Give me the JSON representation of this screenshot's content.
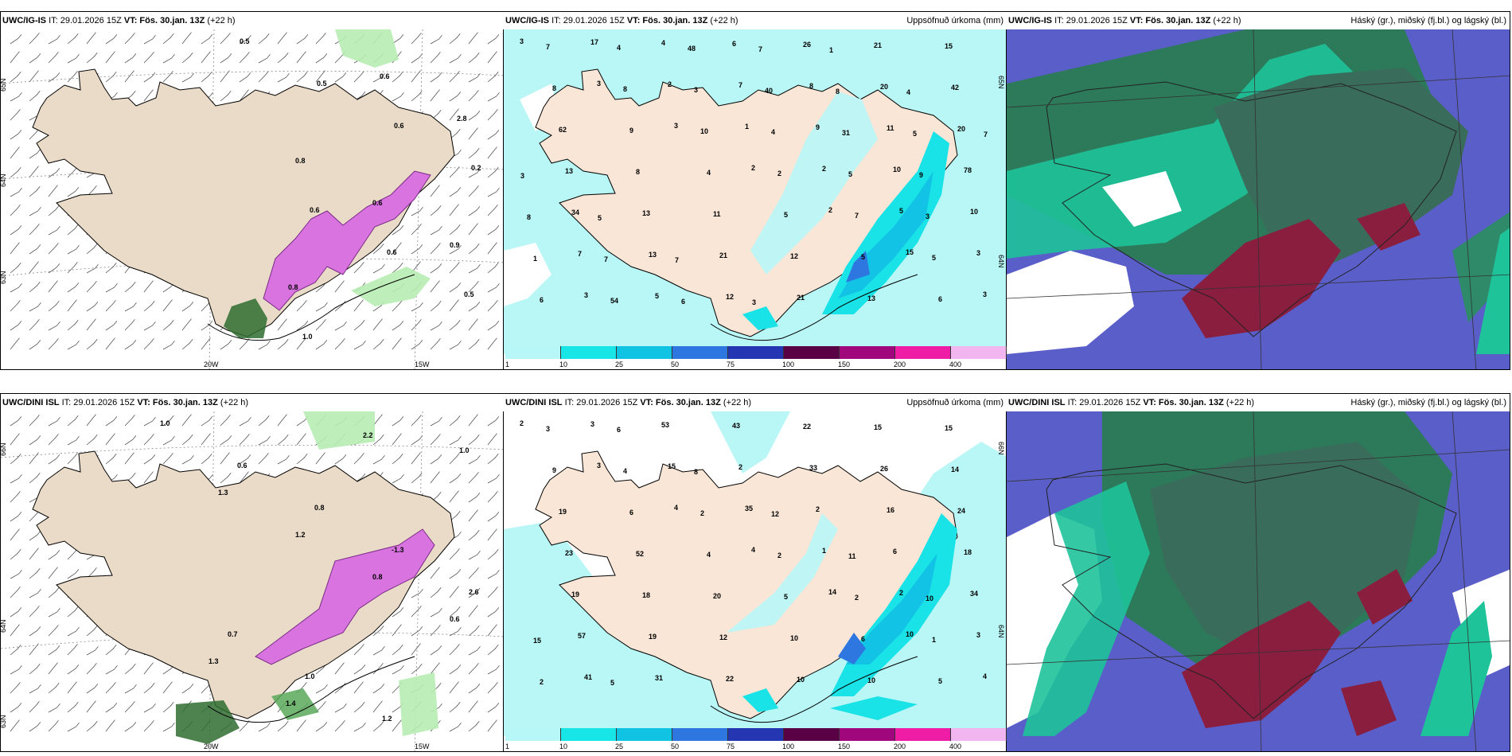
{
  "panels": [
    {
      "id": "p1",
      "model": "UWC/IG-IS",
      "issue": "IT: 29.01.2026 15Z",
      "valid_label": "VT:",
      "valid": "Fös. 30.jan. 13Z",
      "lead": "(+22 h)",
      "right": "",
      "coords": {
        "lat65": "65N",
        "lat64": "64N",
        "lat63": "63N",
        "lon20": "20W",
        "lon15": "15W"
      },
      "labels": [
        "0.5",
        "0.5",
        "0.6",
        "0.2",
        "0.6",
        "0.6",
        "0.5",
        "1.0",
        "0.6",
        "2.8",
        "0.8",
        "0.6",
        "0.9",
        "0.8"
      ]
    },
    {
      "id": "p2",
      "model": "UWC/IG-IS",
      "issue": "IT: 29.01.2026 15Z",
      "valid_label": "VT:",
      "valid": "Fös. 30.jan. 13Z",
      "lead": "(+22 h)",
      "right": "Uppsöfnuð úrkoma (mm)",
      "coords": {
        "lat65": "65N",
        "lat64": "64N"
      },
      "labels": [
        "3",
        "3",
        "3",
        "2",
        "2",
        "15",
        "3",
        "17",
        "2",
        "1",
        "2",
        "5",
        "3",
        "3",
        "4",
        "7",
        "9",
        "10",
        "10",
        "7",
        "5",
        "6",
        "8",
        "11",
        "78",
        "34",
        "13",
        "12",
        "26",
        "20",
        "20",
        "13",
        "13",
        "21",
        "21",
        "21",
        "42",
        "62",
        "8",
        "11",
        "12",
        "13",
        "15",
        "8",
        "9",
        "4",
        "5",
        "5",
        "6",
        "7",
        "8",
        "10",
        "2",
        "7",
        "5",
        "6",
        "4",
        "3",
        "4",
        "5",
        "3",
        "1",
        "54",
        "48",
        "40",
        "31",
        "9",
        "8",
        "7",
        "6",
        "7",
        "8",
        "5",
        "3",
        "5",
        "7",
        "3",
        "1",
        "4",
        "7"
      ]
    },
    {
      "id": "p3",
      "model": "UWC/IG-IS",
      "issue": "IT: 29.01.2026 15Z",
      "valid_label": "VT:",
      "valid": "Fös. 30.jan. 13Z",
      "lead": "(+22 h)",
      "right": "Háský (gr.), miðský (fj.bl.) og lágský (bl.)"
    },
    {
      "id": "p4",
      "model": "UWC/DINI ISL",
      "issue": "IT: 29.01.2026 15Z",
      "valid_label": "VT:",
      "valid": "Fös. 30.jan. 13Z",
      "lead": "(+22 h)",
      "right": "",
      "coords": {
        "lat66": "66N",
        "lat64": "64N",
        "lat63": "63N",
        "lon20": "20W",
        "lon15": "15W"
      },
      "labels": [
        "1.0",
        "0.6",
        "0.8",
        "-1.3",
        "2.6",
        "0.7",
        "1.0",
        "1.2",
        "1.0",
        "1.3",
        "1.2",
        "0.8",
        "0.6",
        "1.3",
        "1.4",
        "2.2"
      ]
    },
    {
      "id": "p5",
      "model": "UWC/DINI ISL",
      "issue": "IT: 29.01.2026 15Z",
      "valid_label": "VT:",
      "valid": "Fös. 30.jan. 13Z",
      "lead": "(+22 h)",
      "right": "Uppsöfnuð úrkoma (mm)",
      "coords": {
        "lat66": "66N",
        "lat64": "64N"
      },
      "labels": [
        "2",
        "3",
        "4",
        "4",
        "14",
        "10",
        "4",
        "3",
        "15",
        "35",
        "1",
        "2",
        "3",
        "41",
        "53",
        "2",
        "2",
        "6",
        "34",
        "57",
        "31",
        "43",
        "33",
        "16",
        "18",
        "19",
        "19",
        "22",
        "22",
        "26",
        "24",
        "23",
        "18",
        "12",
        "10",
        "15",
        "14",
        "19",
        "52",
        "20",
        "10",
        "10",
        "15",
        "9",
        "6",
        "4",
        "5",
        "6",
        "5",
        "3",
        "4",
        "2",
        "2",
        "2",
        "1",
        "2",
        "6",
        "8",
        "12",
        "11",
        "10",
        "15",
        "5"
      ]
    },
    {
      "id": "p6",
      "model": "UWC/DINI ISL",
      "issue": "IT: 29.01.2026 15Z",
      "valid_label": "VT:",
      "valid": "Fös. 30.jan. 13Z",
      "lead": "(+22 h)",
      "right": "Háský (gr.), miðský (fj.bl.) og lágský (bl.)"
    }
  ],
  "colorbar": {
    "ticks": [
      "1",
      "10",
      "25",
      "50",
      "75",
      "100",
      "150",
      "200",
      "400"
    ],
    "colors": [
      "#b8f7f7",
      "#18e6e6",
      "#10c3e3",
      "#2f77e0",
      "#2536b2",
      "#5a0045",
      "#a0077d",
      "#ef1ca5",
      "#f1b5ef"
    ]
  }
}
